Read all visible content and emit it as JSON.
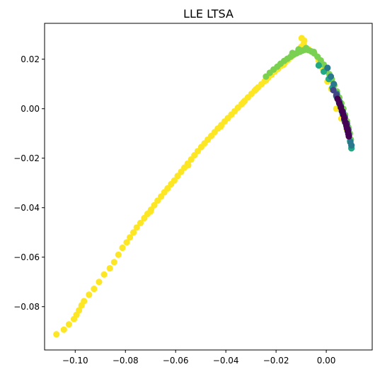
{
  "chart_data": {
    "type": "scatter",
    "title": "LLE LTSA",
    "xlabel": "",
    "ylabel": "",
    "xlim": [
      -0.1122,
      0.0183
    ],
    "ylim": [
      -0.0975,
      0.0345
    ],
    "grid": false,
    "legend": "none",
    "x_ticks": [
      {
        "value": -0.1,
        "label": "−0.10"
      },
      {
        "value": -0.08,
        "label": "−0.08"
      },
      {
        "value": -0.06,
        "label": "−0.06"
      },
      {
        "value": -0.04,
        "label": "−0.04"
      },
      {
        "value": -0.02,
        "label": "−0.02"
      },
      {
        "value": 0.0,
        "label": "0.00"
      }
    ],
    "y_ticks": [
      {
        "value": 0.02,
        "label": "0.02"
      },
      {
        "value": 0.0,
        "label": "0.00"
      },
      {
        "value": -0.02,
        "label": "−0.02"
      },
      {
        "value": -0.04,
        "label": "−0.04"
      },
      {
        "value": -0.06,
        "label": "−0.06"
      },
      {
        "value": -0.08,
        "label": "−0.08"
      }
    ],
    "colors": {
      "yellow": "#fde725",
      "green": "#7ad151",
      "teal": "#22a884",
      "blue": "#2a788e",
      "navy": "#414487",
      "purple": "#440154"
    },
    "series": [
      {
        "color": "#fde725",
        "points": [
          [
            -0.1075,
            -0.0912
          ],
          [
            -0.1045,
            -0.0893
          ],
          [
            -0.1025,
            -0.0872
          ],
          [
            -0.1005,
            -0.085
          ],
          [
            -0.0995,
            -0.0833
          ],
          [
            -0.0985,
            -0.0815
          ],
          [
            -0.0975,
            -0.0795
          ],
          [
            -0.0965,
            -0.0778
          ],
          [
            -0.0945,
            -0.0752
          ],
          [
            -0.0925,
            -0.0728
          ],
          [
            -0.0905,
            -0.07
          ],
          [
            -0.0885,
            -0.067
          ],
          [
            -0.0862,
            -0.0645
          ],
          [
            -0.0845,
            -0.062
          ],
          [
            -0.0828,
            -0.059
          ],
          [
            -0.0812,
            -0.0562
          ],
          [
            -0.0795,
            -0.054
          ],
          [
            -0.0782,
            -0.052
          ],
          [
            -0.0768,
            -0.05
          ],
          [
            -0.0755,
            -0.048
          ],
          [
            -0.074,
            -0.0462
          ],
          [
            -0.0725,
            -0.0442
          ],
          [
            -0.0712,
            -0.0425
          ],
          [
            -0.0698,
            -0.0408
          ],
          [
            -0.0685,
            -0.039
          ],
          [
            -0.0672,
            -0.0372
          ],
          [
            -0.0658,
            -0.0355
          ],
          [
            -0.0645,
            -0.0338
          ],
          [
            -0.0632,
            -0.0322
          ],
          [
            -0.0618,
            -0.0305
          ],
          [
            -0.0605,
            -0.029
          ],
          [
            -0.0592,
            -0.0272
          ],
          [
            -0.0578,
            -0.0255
          ],
          [
            -0.0565,
            -0.0238
          ],
          [
            -0.0552,
            -0.0222
          ],
          [
            -0.0538,
            -0.0205
          ],
          [
            -0.0525,
            -0.0188
          ],
          [
            -0.0512,
            -0.0172
          ],
          [
            -0.0498,
            -0.0155
          ],
          [
            -0.0485,
            -0.014
          ],
          [
            -0.0472,
            -0.0125
          ],
          [
            -0.0458,
            -0.011
          ],
          [
            -0.0445,
            -0.0095
          ],
          [
            -0.0432,
            -0.008
          ],
          [
            -0.0418,
            -0.0066
          ],
          [
            -0.0405,
            -0.0052
          ],
          [
            -0.0392,
            -0.0038
          ],
          [
            -0.0378,
            -0.0024
          ],
          [
            -0.0365,
            -0.001
          ],
          [
            -0.0352,
            0.0004
          ],
          [
            -0.0338,
            0.0018
          ],
          [
            -0.0325,
            0.0032
          ],
          [
            -0.0312,
            0.0046
          ],
          [
            -0.0298,
            0.006
          ],
          [
            -0.0285,
            0.0073
          ],
          [
            -0.0272,
            0.0086
          ],
          [
            -0.0258,
            0.0099
          ],
          [
            -0.0245,
            0.0112
          ],
          [
            -0.0232,
            0.0125
          ],
          [
            -0.0218,
            0.0137
          ],
          [
            -0.0205,
            0.015
          ],
          [
            -0.0192,
            0.0162
          ],
          [
            -0.0178,
            0.0174
          ],
          [
            -0.0165,
            0.0186
          ],
          [
            -0.0152,
            0.0198
          ],
          [
            -0.0138,
            0.021
          ],
          [
            -0.0125,
            0.0222
          ],
          [
            -0.0112,
            0.0234
          ],
          [
            -0.01,
            0.025
          ],
          [
            -0.009,
            0.0262
          ],
          [
            -0.0098,
            0.0285
          ],
          [
            -0.0088,
            0.0275
          ],
          [
            -0.007,
            0.024
          ],
          [
            -0.0048,
            0.0225
          ],
          [
            -0.003,
            0.0195
          ],
          [
            -0.0015,
            0.0165
          ],
          [
            0.0005,
            0.011
          ],
          [
            0.002,
            0.008
          ],
          [
            0.004,
            0.0
          ],
          [
            0.006,
            -0.004
          ],
          [
            0.008,
            -0.008
          ],
          [
            -0.07,
            -0.0415
          ],
          [
            -0.055,
            -0.0228
          ],
          [
            -0.042,
            -0.0072
          ],
          [
            -0.033,
            0.0026
          ],
          [
            -0.024,
            0.0115
          ],
          [
            -0.017,
            0.0178
          ],
          [
            -0.028,
            0.0078
          ]
        ]
      },
      {
        "color": "#7ad151",
        "points": [
          [
            -0.024,
            0.013
          ],
          [
            -0.0225,
            0.0145
          ],
          [
            -0.021,
            0.0158
          ],
          [
            -0.0195,
            0.017
          ],
          [
            -0.0182,
            0.0182
          ],
          [
            -0.0168,
            0.0193
          ],
          [
            -0.0155,
            0.0202
          ],
          [
            -0.0142,
            0.021
          ],
          [
            -0.013,
            0.0218
          ],
          [
            -0.0118,
            0.0224
          ],
          [
            -0.0105,
            0.023
          ],
          [
            -0.0095,
            0.0235
          ],
          [
            -0.0085,
            0.0238
          ],
          [
            -0.0072,
            0.0237
          ],
          [
            -0.006,
            0.0232
          ],
          [
            -0.0048,
            0.0224
          ],
          [
            -0.0035,
            0.021
          ],
          [
            -0.0022,
            0.0195
          ],
          [
            -0.001,
            0.0178
          ],
          [
            0.0,
            0.016
          ],
          [
            0.0012,
            0.014
          ],
          [
            0.0022,
            0.0118
          ],
          [
            0.0032,
            0.0095
          ],
          [
            0.0042,
            0.007
          ],
          [
            0.0052,
            0.0045
          ],
          [
            0.006,
            0.0022
          ],
          [
            0.0068,
            0.0
          ],
          [
            0.0075,
            -0.0025
          ],
          [
            0.0082,
            -0.005
          ],
          [
            0.0088,
            -0.0075
          ],
          [
            0.0094,
            -0.01
          ],
          [
            0.0098,
            -0.0125
          ],
          [
            -0.0135,
            0.0225
          ],
          [
            -0.011,
            0.024
          ],
          [
            -0.008,
            0.0245
          ],
          [
            -0.005,
            0.023
          ]
        ]
      },
      {
        "color": "#22a884",
        "points": [
          [
            -0.003,
            0.0175
          ],
          [
            -0.001,
            0.015
          ],
          [
            0.001,
            0.012
          ],
          [
            0.0025,
            0.0085
          ],
          [
            0.004,
            0.005
          ],
          [
            0.0055,
            0.0015
          ],
          [
            0.0065,
            -0.002
          ],
          [
            0.0075,
            -0.0055
          ],
          [
            0.0085,
            -0.009
          ],
          [
            0.0095,
            -0.013
          ],
          [
            0.01,
            -0.016
          ]
        ]
      },
      {
        "color": "#2a788e",
        "points": [
          [
            0.0005,
            0.0165
          ],
          [
            0.0018,
            0.013
          ],
          [
            0.003,
            0.01
          ],
          [
            0.0042,
            0.006
          ],
          [
            0.0052,
            0.003
          ],
          [
            0.0062,
            -0.001
          ],
          [
            0.0072,
            -0.0045
          ],
          [
            0.0082,
            -0.0075
          ],
          [
            0.009,
            -0.0105
          ],
          [
            0.0096,
            -0.0135
          ],
          [
            0.01,
            -0.0148
          ]
        ]
      },
      {
        "color": "#414487",
        "points": [
          [
            0.0028,
            0.0075
          ],
          [
            0.004,
            0.0055
          ],
          [
            0.005,
            0.003
          ],
          [
            0.0058,
            0.001
          ],
          [
            0.0066,
            -0.0012
          ],
          [
            0.0074,
            -0.0035
          ],
          [
            0.0082,
            -0.006
          ],
          [
            0.0088,
            -0.0085
          ]
        ]
      },
      {
        "color": "#440154",
        "points": [
          [
            0.0045,
            0.004
          ],
          [
            0.0052,
            0.0022
          ],
          [
            0.0058,
            0.0005
          ],
          [
            0.0063,
            -0.001
          ],
          [
            0.0068,
            -0.0025
          ],
          [
            0.0072,
            -0.004
          ],
          [
            0.0076,
            -0.0055
          ],
          [
            0.008,
            -0.0068
          ],
          [
            0.0083,
            -0.008
          ],
          [
            0.0086,
            -0.0092
          ],
          [
            0.0088,
            -0.0102
          ],
          [
            0.009,
            -0.0112
          ]
        ]
      }
    ]
  }
}
